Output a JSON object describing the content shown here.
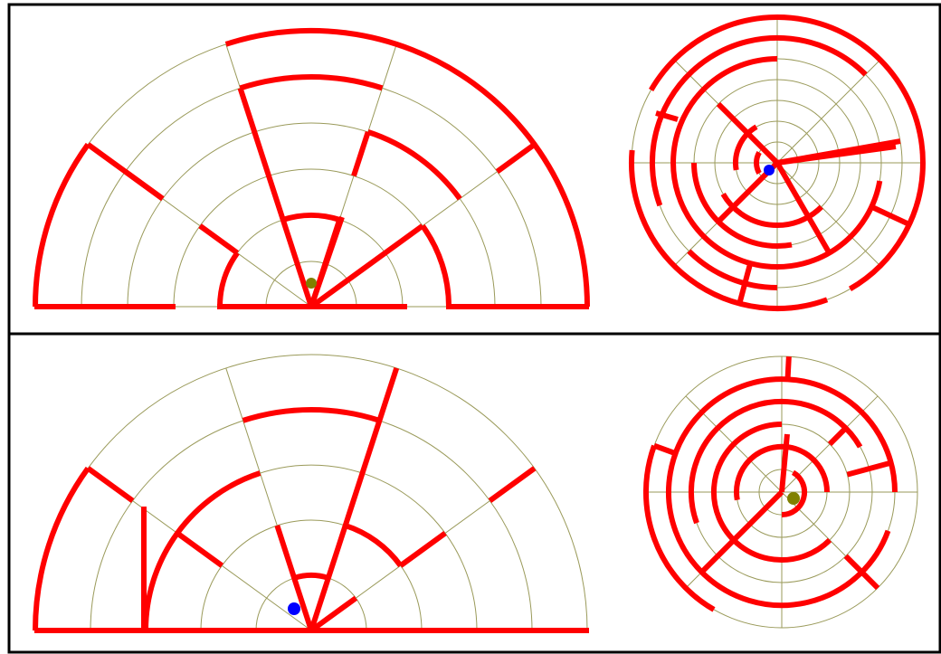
{
  "colors": {
    "background": "#ffffff",
    "border": "#000000",
    "guide": "#9a9a5a",
    "wall": "#ff0000",
    "start_marker": "#0000ff",
    "goal_marker": "#808000"
  },
  "panels": [
    {
      "name": "top",
      "mazes": [
        {
          "name": "top-semicircle",
          "shape": "semicircle",
          "rings": 6,
          "sectors": 5,
          "markers": [
            {
              "type": "goal",
              "color": "#808000"
            }
          ]
        },
        {
          "name": "top-circle",
          "shape": "circle",
          "rings": 6,
          "sectors": 8,
          "markers": [
            {
              "type": "start",
              "color": "#0000ff"
            }
          ]
        }
      ]
    },
    {
      "name": "bottom",
      "mazes": [
        {
          "name": "bottom-semicircle",
          "shape": "semicircle",
          "rings": 5,
          "sectors": 5,
          "markers": [
            {
              "type": "start",
              "color": "#0000ff"
            }
          ]
        },
        {
          "name": "bottom-circle",
          "shape": "circle",
          "rings": 6,
          "sectors": 8,
          "markers": [
            {
              "type": "goal",
              "color": "#808000"
            }
          ]
        }
      ]
    }
  ]
}
